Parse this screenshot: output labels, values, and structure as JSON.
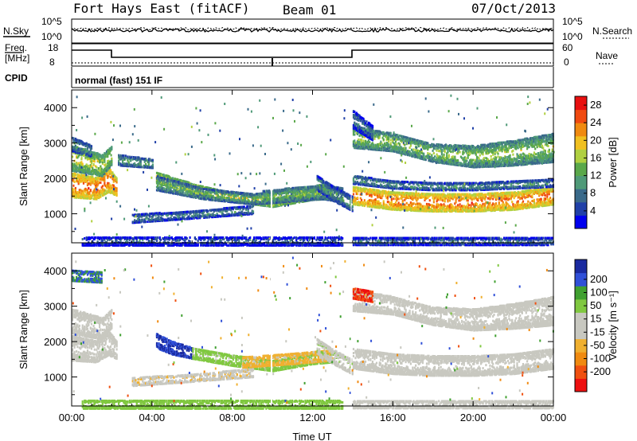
{
  "header": {
    "station": "Fort Hays East (fitACF)",
    "beam": "Beam 01",
    "date": "07/Oct/2013"
  },
  "status_panels": {
    "nsky_label": "N.Sky",
    "nsearch_label": "N.Search",
    "freq_label_1": "Freq.",
    "freq_label_2": "[MHz]",
    "nave_label": "Nave",
    "cpid_label": "CPID",
    "cpid_text": "normal (fast) 151 IF",
    "noise_ticks": [
      "10^5",
      "10^0"
    ],
    "freq_ticks": [
      "18",
      "8"
    ],
    "nave_ticks": [
      "60",
      "0"
    ]
  },
  "colors": {
    "power": [
      "#0000ee",
      "#2040a8",
      "#3a6a8a",
      "#4f9a78",
      "#5aa84a",
      "#b0d040",
      "#f0c020",
      "#f08a10",
      "#f04a10",
      "#e81010"
    ],
    "velocity": [
      "#ee1010",
      "#f05010",
      "#f08a10",
      "#f0b030",
      "#c8c8c0",
      "#c8c8c0",
      "#80c840",
      "#40a030",
      "#3050d8",
      "#1a2aa0"
    ]
  },
  "chart_data": [
    {
      "type": "heatmap",
      "panel": "power",
      "xlabel": "",
      "ylabel": "Slant Range [km]",
      "x_ticks": [
        "00:00",
        "04:00",
        "08:00",
        "12:00",
        "16:00",
        "20:00",
        "00:00"
      ],
      "xlim": [
        0,
        24
      ],
      "y_ticks": [
        1000,
        2000,
        3000,
        4000
      ],
      "ylim": [
        180,
        4500
      ],
      "colorbar_label": "Power [dB]",
      "colorbar_ticks": [
        4,
        8,
        12,
        16,
        20,
        24,
        28
      ],
      "colorbar_range": [
        0,
        30
      ],
      "bands": [
        {
          "t": [
            0.0,
            1.2,
            1.8,
            2.2
          ],
          "r": [
            1850,
            1750,
            2000,
            1800
          ],
          "w": [
            350,
            300,
            350,
            250
          ],
          "v": 25
        },
        {
          "t": [
            0.0,
            1.5,
            2.0
          ],
          "r": [
            2600,
            2400,
            2700
          ],
          "w": [
            350,
            300,
            250
          ],
          "v": 18
        },
        {
          "t": [
            0.0,
            1.0
          ],
          "r": [
            3000,
            2800
          ],
          "w": [
            200,
            150
          ],
          "v": 12
        },
        {
          "t": [
            2.3,
            4.0
          ],
          "r": [
            2550,
            2450
          ],
          "w": [
            150,
            120
          ],
          "v": 13
        },
        {
          "t": [
            4.2,
            6.0,
            8.0,
            10.0,
            12.0,
            13.0
          ],
          "r": [
            2050,
            1750,
            1500,
            1350,
            1550,
            1600
          ],
          "w": [
            150,
            130,
            130,
            120,
            120,
            150
          ],
          "v": 20
        },
        {
          "t": [
            4.2,
            6.5,
            9.0,
            11.0,
            13.0
          ],
          "r": [
            1900,
            1600,
            1450,
            1550,
            1650
          ],
          "w": [
            200,
            150,
            150,
            150,
            150
          ],
          "v": 14
        },
        {
          "t": [
            3.0,
            6.0,
            9.0
          ],
          "r": [
            900,
            1000,
            1150
          ],
          "w": [
            120,
            100,
            120
          ],
          "v": 11
        },
        {
          "t": [
            9.5,
            12.5,
            13.5
          ],
          "r": [
            1500,
            1650,
            1550
          ],
          "w": [
            180,
            200,
            200
          ],
          "v": 15
        },
        {
          "t": [
            12.2,
            13.0,
            14.0
          ],
          "r": [
            1900,
            1600,
            1300
          ],
          "w": [
            200,
            200,
            200
          ],
          "v": 12
        },
        {
          "t": [
            14.0,
            16.0,
            18.0,
            20.0,
            22.0,
            24.0
          ],
          "r": [
            1550,
            1400,
            1350,
            1350,
            1400,
            1550
          ],
          "w": [
            250,
            250,
            250,
            250,
            250,
            250
          ],
          "v": 25
        },
        {
          "t": [
            14.0,
            16.0,
            18.0,
            20.0,
            22.0,
            24.0
          ],
          "r": [
            2000,
            1850,
            1800,
            1800,
            1850,
            1900
          ],
          "w": [
            120,
            100,
            100,
            100,
            100,
            100
          ],
          "v": 12
        },
        {
          "t": [
            14.0,
            16.0,
            18.0,
            20.0,
            22.0,
            24.0
          ],
          "r": [
            3200,
            3050,
            2750,
            2650,
            2750,
            2900
          ],
          "w": [
            300,
            250,
            250,
            300,
            350,
            400
          ],
          "v": 16
        },
        {
          "t": [
            14.0,
            15.0
          ],
          "r": [
            3700,
            3300
          ],
          "w": [
            250,
            200
          ],
          "v": 10
        },
        {
          "t": [
            0.5,
            13.5
          ],
          "r": [
            260,
            260
          ],
          "w": [
            120,
            120
          ],
          "v": 8
        },
        {
          "t": [
            14.0,
            24.0
          ],
          "r": [
            250,
            250
          ],
          "w": [
            100,
            100
          ],
          "v": 10
        }
      ]
    },
    {
      "type": "heatmap",
      "panel": "velocity",
      "xlabel": "Time UT",
      "ylabel": "Slant Range [km]",
      "x_ticks": [
        "00:00",
        "04:00",
        "08:00",
        "12:00",
        "16:00",
        "20:00",
        "00:00"
      ],
      "xlim": [
        0,
        24
      ],
      "y_ticks": [
        1000,
        2000,
        3000,
        4000
      ],
      "ylim": [
        180,
        4500
      ],
      "colorbar_label": "Velocity [m s⁻¹]",
      "colorbar_ticks": [
        200,
        100,
        50,
        15,
        -15,
        -50,
        -100,
        -200
      ],
      "colorbar_range": [
        -250,
        250
      ],
      "bands": [
        {
          "t": [
            0.0,
            1.2,
            1.8,
            2.2
          ],
          "r": [
            1850,
            1750,
            2000,
            1800
          ],
          "w": [
            350,
            300,
            350,
            250
          ],
          "v": 0
        },
        {
          "t": [
            0.0,
            1.5,
            2.0
          ],
          "r": [
            2600,
            2400,
            2700
          ],
          "w": [
            350,
            300,
            250
          ],
          "v": -20
        },
        {
          "t": [
            4.2,
            5.0,
            6.0
          ],
          "r": [
            2050,
            1850,
            1700
          ],
          "w": [
            200,
            180,
            150
          ],
          "v": 200
        },
        {
          "t": [
            6.0,
            8.0,
            10.0,
            12.0,
            13.0
          ],
          "r": [
            1700,
            1500,
            1350,
            1550,
            1600
          ],
          "w": [
            150,
            150,
            150,
            150,
            150
          ],
          "v": 60
        },
        {
          "t": [
            8.5,
            11.0,
            13.0
          ],
          "r": [
            1450,
            1550,
            1650
          ],
          "w": [
            150,
            150,
            150
          ],
          "v": -60
        },
        {
          "t": [
            3.0,
            6.0,
            9.0
          ],
          "r": [
            900,
            1000,
            1150
          ],
          "w": [
            120,
            100,
            120
          ],
          "v": -40
        },
        {
          "t": [
            12.2,
            13.0,
            14.0
          ],
          "r": [
            1900,
            1600,
            1300
          ],
          "w": [
            200,
            200,
            200
          ],
          "v": 40
        },
        {
          "t": [
            14.0,
            16.0,
            18.0,
            20.0,
            22.0,
            24.0
          ],
          "r": [
            1550,
            1400,
            1350,
            1350,
            1400,
            1550
          ],
          "w": [
            280,
            280,
            280,
            280,
            280,
            280
          ],
          "v": 0
        },
        {
          "t": [
            14.0,
            16.0,
            18.0,
            20.0,
            22.0,
            24.0
          ],
          "r": [
            3200,
            3050,
            2750,
            2650,
            2750,
            2900
          ],
          "w": [
            300,
            250,
            250,
            300,
            350,
            400
          ],
          "v": 0
        },
        {
          "t": [
            14.0,
            15.0
          ],
          "r": [
            3400,
            3300
          ],
          "w": [
            150,
            150
          ],
          "v": -200
        },
        {
          "t": [
            0.0,
            1.5
          ],
          "r": [
            3900,
            3850
          ],
          "w": [
            150,
            150
          ],
          "v": 150
        },
        {
          "t": [
            0.5,
            13.5
          ],
          "r": [
            260,
            260
          ],
          "w": [
            120,
            120
          ],
          "v": 80
        },
        {
          "t": [
            14.0,
            24.0
          ],
          "r": [
            250,
            250
          ],
          "w": [
            100,
            100
          ],
          "v": 0
        }
      ]
    }
  ]
}
